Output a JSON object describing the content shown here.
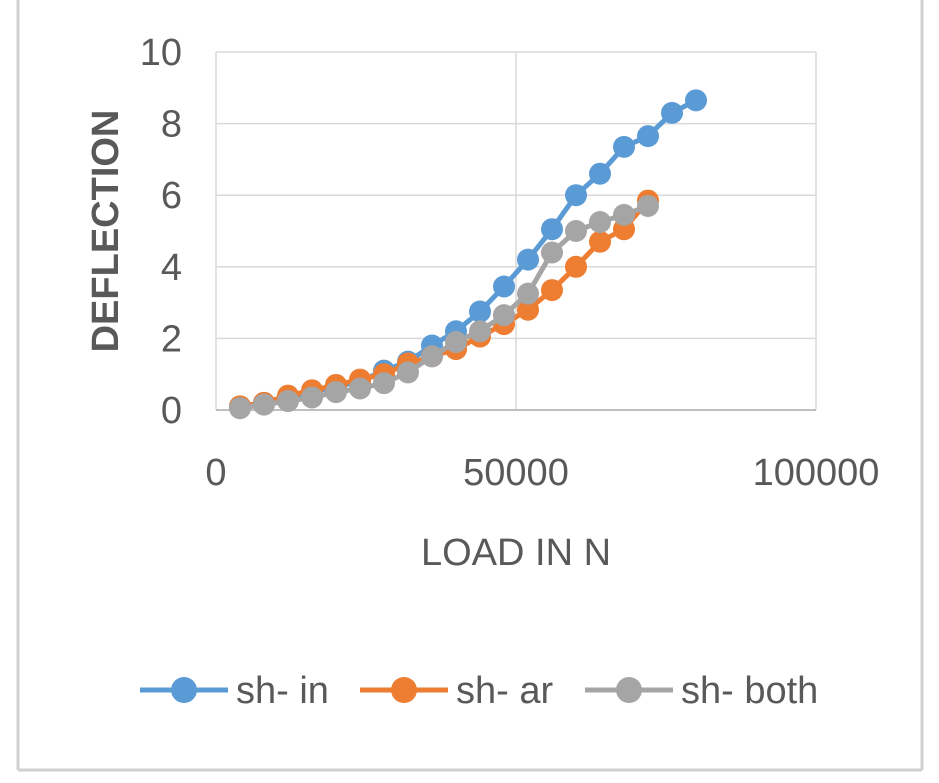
{
  "chart_data": {
    "type": "line",
    "title": "",
    "xlabel": "LOAD IN N",
    "ylabel": "DEFLECTION",
    "xlim": [
      0,
      100000
    ],
    "ylim": [
      0,
      10
    ],
    "x_ticks": [
      0,
      50000,
      100000
    ],
    "y_ticks": [
      0,
      2,
      4,
      6,
      8,
      10
    ],
    "x_tick_labels": [
      "0",
      "50000",
      "100000"
    ],
    "y_tick_labels": [
      "0",
      "2",
      "4",
      "6",
      "8",
      "10"
    ],
    "grid": "major gridlines on both axes",
    "legend_position": "bottom",
    "marker": "circle",
    "series": [
      {
        "name": "sh- in",
        "color": "#5b9bd5",
        "points": [
          [
            4000,
            0.1
          ],
          [
            8000,
            0.2
          ],
          [
            12000,
            0.35
          ],
          [
            16000,
            0.5
          ],
          [
            20000,
            0.65
          ],
          [
            24000,
            0.8
          ],
          [
            28000,
            1.1
          ],
          [
            32000,
            1.35
          ],
          [
            36000,
            1.8
          ],
          [
            40000,
            2.2
          ],
          [
            44000,
            2.75
          ],
          [
            48000,
            3.45
          ],
          [
            52000,
            4.2
          ],
          [
            56000,
            5.05
          ],
          [
            60000,
            6.0
          ],
          [
            64000,
            6.6
          ],
          [
            68000,
            7.35
          ],
          [
            72000,
            7.65
          ],
          [
            76000,
            8.3
          ],
          [
            80000,
            8.65
          ]
        ]
      },
      {
        "name": "sh- ar",
        "color": "#ed7d31",
        "points": [
          [
            4000,
            0.1
          ],
          [
            8000,
            0.2
          ],
          [
            12000,
            0.4
          ],
          [
            16000,
            0.55
          ],
          [
            20000,
            0.7
          ],
          [
            24000,
            0.85
          ],
          [
            28000,
            1.0
          ],
          [
            32000,
            1.3
          ],
          [
            36000,
            1.5
          ],
          [
            40000,
            1.7
          ],
          [
            44000,
            2.05
          ],
          [
            48000,
            2.4
          ],
          [
            52000,
            2.8
          ],
          [
            56000,
            3.35
          ],
          [
            60000,
            4.0
          ],
          [
            64000,
            4.7
          ],
          [
            68000,
            5.05
          ],
          [
            72000,
            5.85
          ]
        ]
      },
      {
        "name": "sh- both",
        "color": "#a5a5a5",
        "points": [
          [
            4000,
            0.05
          ],
          [
            8000,
            0.15
          ],
          [
            12000,
            0.25
          ],
          [
            16000,
            0.35
          ],
          [
            20000,
            0.5
          ],
          [
            24000,
            0.6
          ],
          [
            28000,
            0.75
          ],
          [
            32000,
            1.05
          ],
          [
            36000,
            1.5
          ],
          [
            40000,
            1.9
          ],
          [
            44000,
            2.2
          ],
          [
            48000,
            2.65
          ],
          [
            52000,
            3.25
          ],
          [
            56000,
            4.4
          ],
          [
            60000,
            5.0
          ],
          [
            64000,
            5.25
          ],
          [
            68000,
            5.45
          ],
          [
            72000,
            5.7
          ]
        ]
      }
    ]
  },
  "colors": {
    "gridline": "#d9d9d9",
    "axis_line": "#bfbfbf",
    "frame_border": "#d0d0d0",
    "text": "#595959"
  }
}
